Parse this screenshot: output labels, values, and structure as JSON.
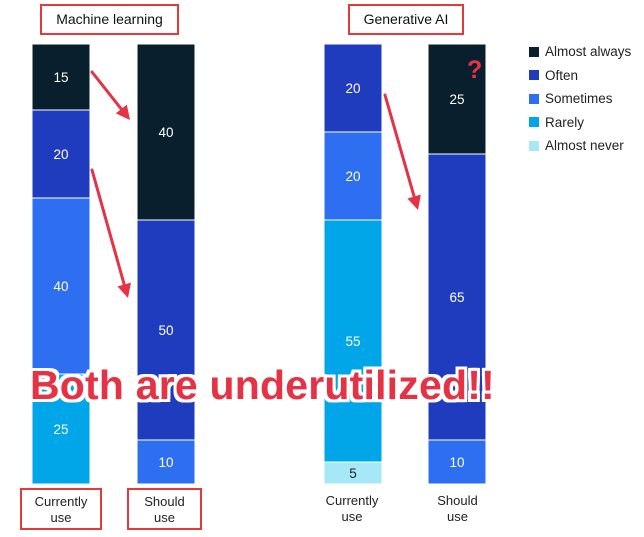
{
  "chart_data": [
    {
      "type": "bar",
      "stacked": true,
      "title": "Machine learning",
      "categories": [
        "Currently use",
        "Should use"
      ],
      "series": [
        {
          "name": "Almost always",
          "values": [
            15,
            40
          ]
        },
        {
          "name": "Often",
          "values": [
            20,
            50
          ]
        },
        {
          "name": "Sometimes",
          "values": [
            40,
            10
          ]
        },
        {
          "name": "Rarely",
          "values": [
            25,
            0
          ]
        },
        {
          "name": "Almost never",
          "values": [
            0,
            0
          ]
        }
      ]
    },
    {
      "type": "bar",
      "stacked": true,
      "title": "Generative AI",
      "categories": [
        "Currently use",
        "Should use"
      ],
      "series": [
        {
          "name": "Almost always",
          "values": [
            0,
            25
          ]
        },
        {
          "name": "Often",
          "values": [
            20,
            65
          ]
        },
        {
          "name": "Sometimes",
          "values": [
            20,
            10
          ]
        },
        {
          "name": "Rarely",
          "values": [
            55,
            0
          ]
        },
        {
          "name": "Almost never",
          "values": [
            5,
            0
          ]
        }
      ]
    }
  ],
  "legend": [
    {
      "label": "Almost always",
      "color": "#0a1f2e"
    },
    {
      "label": "Often",
      "color": "#1f3cbe"
    },
    {
      "label": "Sometimes",
      "color": "#2e6ff2"
    },
    {
      "label": "Rarely",
      "color": "#00a6e8"
    },
    {
      "label": "Almost never",
      "color": "#a6e7f8"
    }
  ],
  "annotations": {
    "headline": "Both are underutilized!!",
    "question_mark": "?"
  },
  "ml_chart": {
    "title": "Machine learning",
    "xlabels": [
      [
        "Currently",
        "use"
      ],
      [
        "Should",
        "use"
      ]
    ]
  },
  "genai_chart": {
    "title": "Generative AI",
    "xlabels": [
      [
        "Currently",
        "use"
      ],
      [
        "Should",
        "use"
      ]
    ]
  }
}
